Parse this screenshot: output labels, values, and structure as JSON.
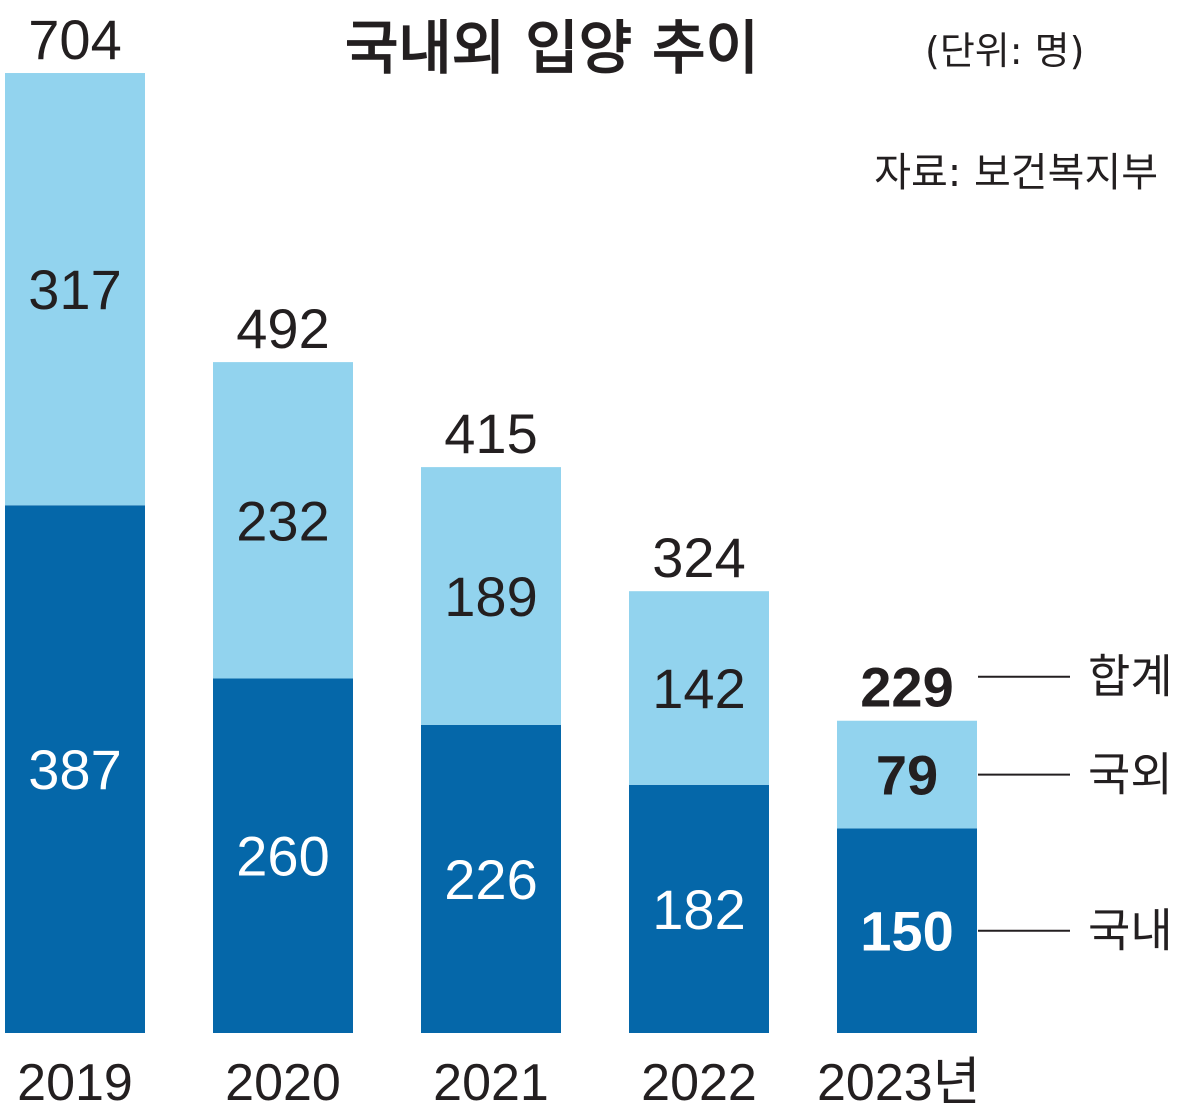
{
  "title": "국내외 입양 추이",
  "unit": "(단위: 명)",
  "source": "자료: 보건복지부",
  "colors": {
    "domestic": "#0567a9",
    "overseas": "#92d3ee",
    "text": "#231f20"
  },
  "chart_data": {
    "type": "bar",
    "stacked": true,
    "categories": [
      "2019",
      "2020",
      "2021",
      "2022",
      "2023년"
    ],
    "series": [
      {
        "name": "국내",
        "values": [
          387,
          260,
          226,
          182,
          150
        ]
      },
      {
        "name": "국외",
        "values": [
          317,
          232,
          189,
          142,
          79
        ]
      }
    ],
    "totals": [
      704,
      492,
      415,
      324,
      229
    ],
    "total_label": "합계",
    "legend_position": "right of last bar",
    "grid": false
  }
}
